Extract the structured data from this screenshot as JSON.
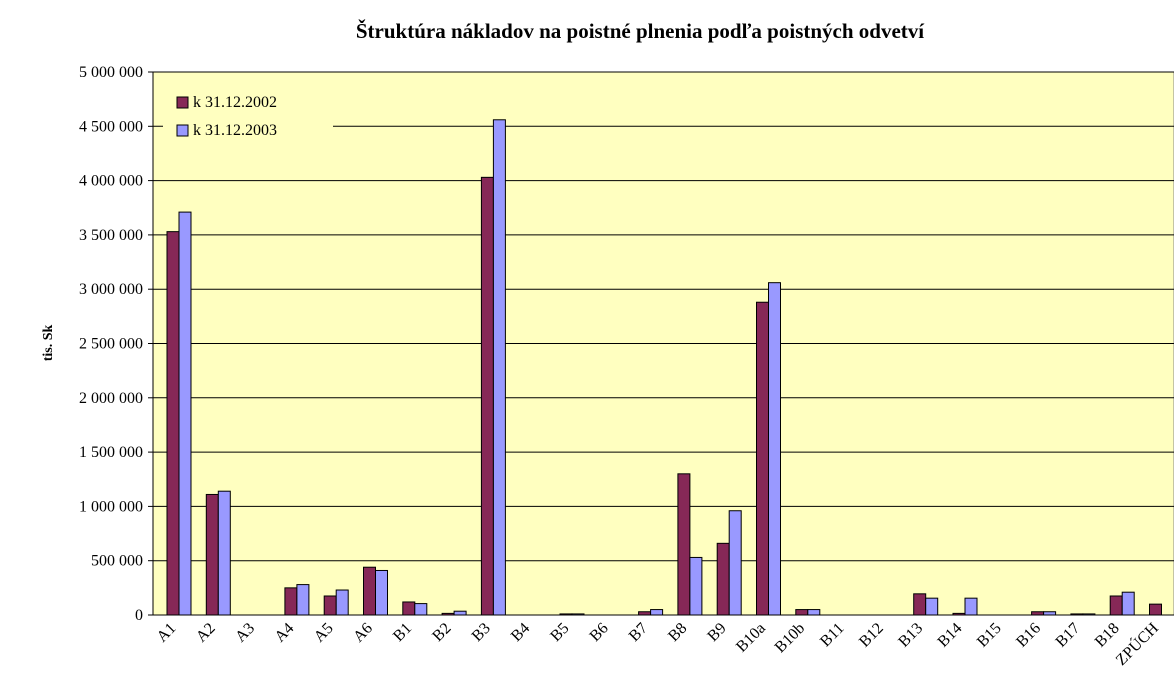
{
  "chart_data": {
    "type": "bar",
    "title": "Štruktúra nákladov na poistné plnenia podľa poistných odvetví",
    "y_label": "tis. Sk",
    "categories": [
      "A1",
      "A2",
      "A3",
      "A4",
      "A5",
      "A6",
      "B1",
      "B2",
      "B3",
      "B4",
      "B5",
      "B6",
      "B7",
      "B8",
      "B9",
      "B10a",
      "B10b",
      "B11",
      "B12",
      "B13",
      "B14",
      "B15",
      "B16",
      "B17",
      "B18",
      "ZPÚCH"
    ],
    "series": [
      {
        "name": "k 31.12.2002",
        "color": "#862857",
        "values": [
          3530000,
          1110000,
          0,
          250000,
          175000,
          440000,
          120000,
          15000,
          4030000,
          0,
          10000,
          0,
          30000,
          1300000,
          660000,
          2880000,
          50000,
          0,
          0,
          195000,
          15000,
          0,
          30000,
          10000,
          175000,
          100000
        ]
      },
      {
        "name": "k 31.12.2003",
        "color": "#9999ff",
        "values": [
          3710000,
          1140000,
          0,
          280000,
          230000,
          410000,
          105000,
          35000,
          4560000,
          0,
          10000,
          0,
          50000,
          530000,
          960000,
          3060000,
          50000,
          0,
          0,
          155000,
          155000,
          0,
          30000,
          10000,
          210000,
          null
        ]
      }
    ],
    "ylim": [
      0,
      5000000
    ],
    "yticks": [
      {
        "value": 0,
        "label": "0"
      },
      {
        "value": 500000,
        "label": "500 000"
      },
      {
        "value": 1000000,
        "label": "1 000 000"
      },
      {
        "value": 1500000,
        "label": "1 500 000"
      },
      {
        "value": 2000000,
        "label": "2 000 000"
      },
      {
        "value": 2500000,
        "label": "2 500 000"
      },
      {
        "value": 3000000,
        "label": "3 000 000"
      },
      {
        "value": 3500000,
        "label": "3 500 000"
      },
      {
        "value": 4000000,
        "label": "4 000 000"
      },
      {
        "value": 4500000,
        "label": "4 500 000"
      },
      {
        "value": 5000000,
        "label": "5 000 000"
      }
    ],
    "grid": true,
    "legend": "top-left",
    "plot_background": "#ffffc0"
  }
}
